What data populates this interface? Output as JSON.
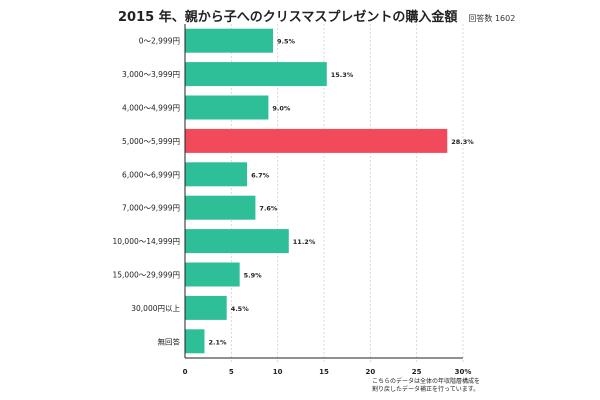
{
  "chart_data": {
    "type": "bar",
    "orientation": "horizontal",
    "title": "2015 年、親から子へのクリスマスプレゼントの購入金額",
    "sample_note": "回答数 1602",
    "categories": [
      "0〜2,999円",
      "3,000〜3,999円",
      "4,000〜4,999円",
      "5,000〜5,999円",
      "6,000〜6,999円",
      "7,000〜9,999円",
      "10,000〜14,999円",
      "15,000〜29,999円",
      "30,000円以上",
      "無回答"
    ],
    "values": [
      9.5,
      15.3,
      9.0,
      28.3,
      6.7,
      7.6,
      11.2,
      5.9,
      4.5,
      2.1
    ],
    "value_labels": [
      "9.5%",
      "15.3%",
      "9.0%",
      "28.3%",
      "6.7%",
      "7.6%",
      "11.2%",
      "5.9%",
      "4.5%",
      "2.1%"
    ],
    "highlight_index": 3,
    "xlim": [
      0,
      30
    ],
    "xticks": [
      0,
      5,
      10,
      15,
      20,
      25,
      30
    ],
    "xtick_labels": [
      "0",
      "5",
      "10",
      "15",
      "20",
      "25",
      "30%"
    ],
    "grid": true,
    "colors": {
      "bar": "#2fbf98",
      "highlight": "#f04a5b",
      "grid": "#cfcfcf",
      "axis": "#222222"
    },
    "footnote_lines": [
      "こちらのデータは全体の年収階層構成を",
      "割り戻したデータ補正を行っています。"
    ]
  }
}
